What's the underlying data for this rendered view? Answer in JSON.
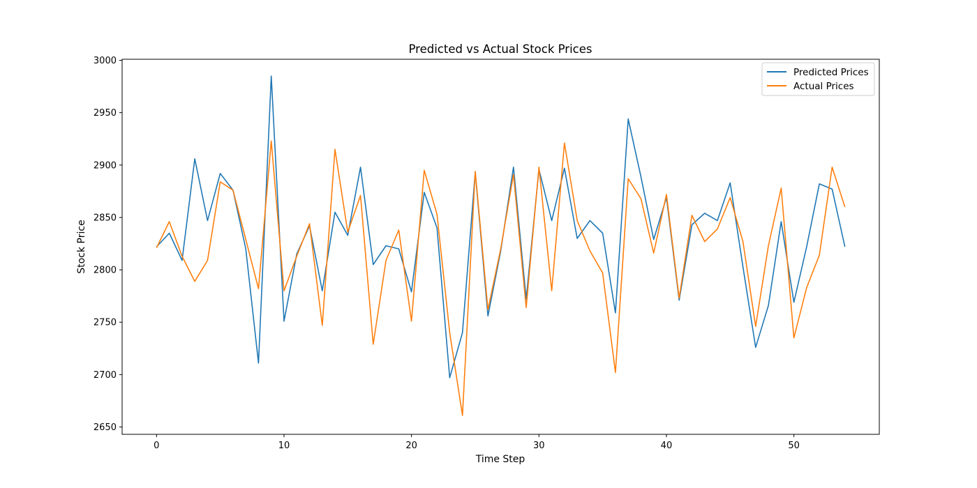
{
  "chart_data": {
    "type": "line",
    "title": "Predicted vs Actual Stock Prices",
    "xlabel": "Time Step",
    "ylabel": "Stock Price",
    "xlim": [
      -2.7,
      56.7
    ],
    "ylim": [
      2643,
      3001
    ],
    "xticks": [
      0,
      10,
      20,
      30,
      40,
      50
    ],
    "yticks": [
      2650,
      2700,
      2750,
      2800,
      2850,
      2900,
      2950,
      3000
    ],
    "grid": false,
    "legend_position": "top-right",
    "x": [
      0,
      1,
      2,
      3,
      4,
      5,
      6,
      7,
      8,
      9,
      10,
      11,
      12,
      13,
      14,
      15,
      16,
      17,
      18,
      19,
      20,
      21,
      22,
      23,
      24,
      25,
      26,
      27,
      28,
      29,
      30,
      31,
      32,
      33,
      34,
      35,
      36,
      37,
      38,
      39,
      40,
      41,
      42,
      43,
      44,
      45,
      46,
      47,
      48,
      49,
      50,
      51,
      52,
      53,
      54
    ],
    "series": [
      {
        "name": "Predicted Prices",
        "color": "#1f77b4",
        "values": [
          2822,
          2835,
          2809,
          2906,
          2847,
          2892,
          2876,
          2820,
          2711,
          2985,
          2751,
          2815,
          2842,
          2780,
          2855,
          2833,
          2898,
          2805,
          2823,
          2820,
          2779,
          2874,
          2840,
          2697,
          2740,
          2893,
          2756,
          2818,
          2898,
          2772,
          2896,
          2847,
          2897,
          2830,
          2847,
          2835,
          2759,
          2944,
          2889,
          2829,
          2869,
          2771,
          2843,
          2854,
          2847,
          2883,
          2803,
          2726,
          2766,
          2846,
          2769,
          2822,
          2882,
          2877,
          2822
        ]
      },
      {
        "name": "Actual Prices",
        "color": "#ff7f0e",
        "values": [
          2821,
          2846,
          2813,
          2789,
          2809,
          2884,
          2876,
          2829,
          2782,
          2923,
          2780,
          2813,
          2844,
          2747,
          2915,
          2836,
          2871,
          2729,
          2809,
          2838,
          2751,
          2895,
          2853,
          2740,
          2661,
          2894,
          2762,
          2820,
          2891,
          2764,
          2898,
          2780,
          2921,
          2847,
          2818,
          2797,
          2702,
          2887,
          2868,
          2816,
          2872,
          2773,
          2852,
          2827,
          2839,
          2869,
          2827,
          2746,
          2823,
          2878,
          2735,
          2783,
          2814,
          2898,
          2860
        ]
      }
    ]
  }
}
